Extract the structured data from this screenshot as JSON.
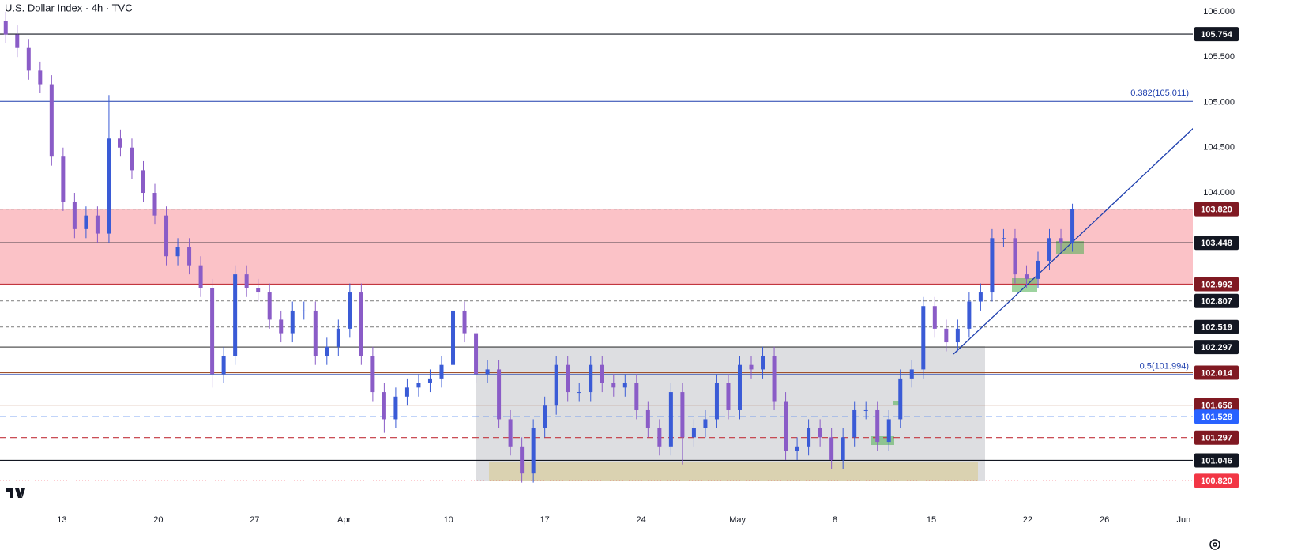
{
  "chart_data": {
    "type": "candlestick",
    "title": "U.S. Dollar Index · 4h · TVC",
    "up_color": "#3a5bd6",
    "down_color": "#8a5cc7",
    "zone_color": "rgba(242,54,69,0.3)",
    "open": [
      105.9,
      105.75,
      105.6,
      105.35,
      105.2,
      104.4,
      103.9,
      103.6,
      103.75,
      103.55,
      104.6,
      104.5,
      104.25,
      104.0,
      103.75,
      103.3,
      103.4,
      103.2,
      102.95,
      102.0,
      102.2,
      103.1,
      102.95,
      102.9,
      102.6,
      102.45,
      102.7,
      102.7,
      102.2,
      102.3,
      102.5,
      102.9,
      102.2,
      101.8,
      101.5,
      101.75,
      101.85,
      101.9,
      101.95,
      102.1,
      102.7,
      102.45,
      102.0,
      102.05,
      101.5,
      101.2,
      100.9,
      101.4,
      101.65,
      102.1,
      101.8,
      101.8,
      102.1,
      101.9,
      101.85,
      101.9,
      101.6,
      101.4,
      101.2,
      101.8,
      101.3,
      101.4,
      101.5,
      101.9,
      101.6,
      102.1,
      102.05,
      102.2,
      101.7,
      101.15,
      101.2,
      101.4,
      101.3,
      101.05,
      101.3,
      101.6,
      101.6,
      101.25,
      101.5,
      101.95,
      102.05,
      102.75,
      102.5,
      102.35,
      102.5,
      102.8,
      102.9,
      103.5,
      103.5,
      103.1,
      103.05,
      103.25,
      103.5,
      103.45
    ],
    "high": [
      106.0,
      105.85,
      105.7,
      105.45,
      105.3,
      104.5,
      104.0,
      103.85,
      103.85,
      105.08,
      104.7,
      104.6,
      104.35,
      104.1,
      103.85,
      103.5,
      103.5,
      103.3,
      103.05,
      102.3,
      103.2,
      103.2,
      103.05,
      103.0,
      102.7,
      102.8,
      102.8,
      102.8,
      102.4,
      102.6,
      103.0,
      103.0,
      102.3,
      101.9,
      101.85,
      101.95,
      102.0,
      102.05,
      102.2,
      102.8,
      102.8,
      102.55,
      102.15,
      102.15,
      101.6,
      101.3,
      101.5,
      101.75,
      102.2,
      102.2,
      101.9,
      102.2,
      102.2,
      102.0,
      102.0,
      102.0,
      101.7,
      101.5,
      101.9,
      101.9,
      101.5,
      101.6,
      102.0,
      102.0,
      102.2,
      102.2,
      102.3,
      102.3,
      101.8,
      101.3,
      101.5,
      101.5,
      101.4,
      101.4,
      101.7,
      101.7,
      101.7,
      101.6,
      102.05,
      102.15,
      102.85,
      102.85,
      102.6,
      102.6,
      102.9,
      103.0,
      103.6,
      103.6,
      103.6,
      103.2,
      103.35,
      103.6,
      103.6,
      103.88
    ],
    "low": [
      105.65,
      105.5,
      105.25,
      105.1,
      104.3,
      103.8,
      103.5,
      103.5,
      103.45,
      103.45,
      104.4,
      104.15,
      103.9,
      103.65,
      103.2,
      103.2,
      103.1,
      102.85,
      101.85,
      101.9,
      102.1,
      102.85,
      102.8,
      102.5,
      102.35,
      102.35,
      102.6,
      102.1,
      102.1,
      102.2,
      102.4,
      102.1,
      101.7,
      101.35,
      101.4,
      101.65,
      101.75,
      101.8,
      101.85,
      102.0,
      102.35,
      101.9,
      101.9,
      101.4,
      101.1,
      100.8,
      100.8,
      101.3,
      101.55,
      101.7,
      101.7,
      101.7,
      101.8,
      101.75,
      101.75,
      101.5,
      101.3,
      101.1,
      101.1,
      101.0,
      101.2,
      101.3,
      101.4,
      101.5,
      101.5,
      101.95,
      101.95,
      101.6,
      101.05,
      101.05,
      101.1,
      101.2,
      100.95,
      100.95,
      101.2,
      101.5,
      101.15,
      101.15,
      101.4,
      101.85,
      101.95,
      102.4,
      102.25,
      102.25,
      102.4,
      102.7,
      102.8,
      103.4,
      103.0,
      102.95,
      102.95,
      103.15,
      103.35,
      103.35
    ],
    "close": [
      105.75,
      105.6,
      105.35,
      105.2,
      104.4,
      103.9,
      103.6,
      103.75,
      103.55,
      104.6,
      104.5,
      104.25,
      104.0,
      103.75,
      103.3,
      103.4,
      103.2,
      102.95,
      102.0,
      102.2,
      103.1,
      102.95,
      102.9,
      102.6,
      102.45,
      102.7,
      102.7,
      102.2,
      102.3,
      102.5,
      102.9,
      102.2,
      101.8,
      101.5,
      101.75,
      101.85,
      101.9,
      101.95,
      102.1,
      102.7,
      102.45,
      102.0,
      102.05,
      101.5,
      101.2,
      100.9,
      101.4,
      101.65,
      102.1,
      101.8,
      101.8,
      102.1,
      101.9,
      101.85,
      101.9,
      101.6,
      101.4,
      101.2,
      101.8,
      101.3,
      101.4,
      101.5,
      101.9,
      101.6,
      102.1,
      102.05,
      102.2,
      101.7,
      101.15,
      101.2,
      101.4,
      101.3,
      101.05,
      101.3,
      101.6,
      101.6,
      101.25,
      101.5,
      101.95,
      102.05,
      102.75,
      102.5,
      102.35,
      102.5,
      102.8,
      102.9,
      103.5,
      103.5,
      103.1,
      103.05,
      103.25,
      103.5,
      103.45,
      103.82
    ],
    "xlim": [
      -0.5,
      103.5
    ],
    "xticks": [
      {
        "value": 4.9,
        "label": "13"
      },
      {
        "value": 13.3,
        "label": "20"
      },
      {
        "value": 21.7,
        "label": "27"
      },
      {
        "value": 29.5,
        "label": "Apr"
      },
      {
        "value": 38.6,
        "label": "10"
      },
      {
        "value": 47.0,
        "label": "17"
      },
      {
        "value": 55.4,
        "label": "24"
      },
      {
        "value": 63.8,
        "label": "May"
      },
      {
        "value": 72.3,
        "label": "8"
      },
      {
        "value": 80.7,
        "label": "15"
      },
      {
        "value": 89.1,
        "label": "22"
      },
      {
        "value": 95.8,
        "label": "26"
      },
      {
        "value": 102.7,
        "label": "Jun"
      }
    ],
    "ylim": [
      100.5,
      106.13
    ],
    "yticks": [
      {
        "value": 106,
        "label": "106.000"
      },
      {
        "value": 105.5,
        "label": "105.500"
      },
      {
        "value": 105,
        "label": "105.000"
      },
      {
        "value": 104.5,
        "label": "104.500"
      },
      {
        "value": 104,
        "label": "104.000"
      }
    ],
    "grid": false,
    "levels": [
      {
        "value": 105.754,
        "line_color": "#131722",
        "box_color": "#131722",
        "dash": "none"
      },
      {
        "value": 103.82,
        "label": "103.820",
        "line_color": "#9e9e9e",
        "box_color": "#801922",
        "dash": "4 3"
      },
      {
        "value": 103.448,
        "line_color": "#131722",
        "box_color": "#131722",
        "dash": "none"
      },
      {
        "value": 102.992,
        "line_color": "#c2363f",
        "box_color": "#801922",
        "dash": "none"
      },
      {
        "value": 102.807,
        "line_color": "#8c8c8c",
        "box_color": "#131722",
        "dash": "4 3"
      },
      {
        "value": 102.519,
        "line_color": "#8c8c8c",
        "box_color": "#131722",
        "dash": "4 3"
      },
      {
        "value": 102.297,
        "line_color": "#555555",
        "box_color": "#131722",
        "dash": "none"
      },
      {
        "value": 102.014,
        "line_color": "#a0522d",
        "box_color": "#801922",
        "dash": "none"
      },
      {
        "value": 101.656,
        "line_color": "#a0522d",
        "box_color": "#801922",
        "dash": "none"
      },
      {
        "value": 101.528,
        "line_color": "#5b8cf0",
        "box_color": "#2962ff",
        "dash": "8 5"
      },
      {
        "value": 101.297,
        "line_color": "#c2363f",
        "box_color": "#801922",
        "dash": "8 5"
      },
      {
        "value": 101.046,
        "line_color": "#131722",
        "box_color": "#131722",
        "dash": "none"
      },
      {
        "value": 100.82,
        "label": "100.820",
        "line_color": "#f23645",
        "box_color": "#f23645",
        "dash": "1 3"
      }
    ],
    "fib_levels": [
      {
        "value": 105.011,
        "label": "0.382(105.011)",
        "color": "#1e3fae"
      },
      {
        "value": 101.994,
        "label": "0.5(101.994)",
        "color": "#1e3fae"
      }
    ]
  }
}
